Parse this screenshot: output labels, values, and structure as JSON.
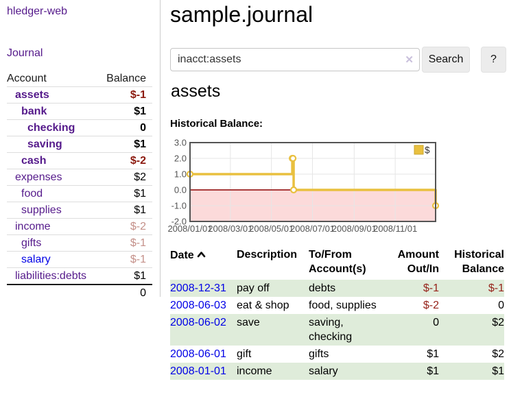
{
  "sidebar": {
    "app_title": "hledger-web",
    "journal_label": "Journal",
    "accounts_table": {
      "account_header": "Account",
      "balance_header": "Balance",
      "rows": [
        {
          "name": "assets",
          "depth": 1,
          "bold": true,
          "balance": "$-1",
          "balance_style": "negative"
        },
        {
          "name": "bank",
          "depth": 2,
          "bold": true,
          "balance": "$1",
          "balance_style": "normal"
        },
        {
          "name": "checking",
          "depth": 3,
          "bold": true,
          "balance": "0",
          "balance_style": "normal"
        },
        {
          "name": "saving",
          "depth": 3,
          "bold": true,
          "balance": "$1",
          "balance_style": "normal"
        },
        {
          "name": "cash",
          "depth": 2,
          "bold": true,
          "balance": "$-2",
          "balance_style": "negative"
        },
        {
          "name": "expenses",
          "depth": 1,
          "bold": false,
          "balance": "$2",
          "balance_style": "normal"
        },
        {
          "name": "food",
          "depth": 2,
          "bold": false,
          "balance": "$1",
          "balance_style": "normal"
        },
        {
          "name": "supplies",
          "depth": 2,
          "bold": false,
          "balance": "$1",
          "balance_style": "normal"
        },
        {
          "name": "income",
          "depth": 1,
          "bold": false,
          "balance": "$-2",
          "balance_style": "negative-dim"
        },
        {
          "name": "gifts",
          "depth": 2,
          "bold": false,
          "balance": "$-1",
          "balance_style": "negative-dim"
        },
        {
          "name": "salary",
          "depth": 2,
          "bold": false,
          "link_color": "blue",
          "balance": "$-1",
          "balance_style": "negative-dim"
        },
        {
          "name": "liabilities:debts",
          "depth": 1,
          "bold": false,
          "balance": "$1",
          "balance_style": "normal"
        }
      ],
      "total": "0"
    }
  },
  "main": {
    "title": "sample.journal",
    "search": {
      "value": "inacct:assets",
      "clear_icon": "✕",
      "search_button": "Search",
      "help_button": "?"
    },
    "account_heading": "assets",
    "chart_title": "Historical Balance:",
    "register_table": {
      "headers": {
        "date": "Date",
        "description": "Description",
        "tofrom": "To/From Account(s)",
        "amount": "Amount Out/In",
        "historical": "Historical Balance"
      },
      "rows": [
        {
          "date": "2008-12-31",
          "description": "pay off",
          "accounts": "debts",
          "amount": "$-1",
          "amount_neg": true,
          "balance": "$-1",
          "balance_neg": true,
          "green": true
        },
        {
          "date": "2008-06-03",
          "description": "eat & shop",
          "accounts": "food, supplies",
          "amount": "$-2",
          "amount_neg": true,
          "balance": "0",
          "balance_neg": false,
          "green": false
        },
        {
          "date": "2008-06-02",
          "description": "save",
          "accounts": "saving, checking",
          "amount": "0",
          "amount_neg": false,
          "balance": "$2",
          "balance_neg": false,
          "green": true
        },
        {
          "date": "2008-06-01",
          "description": "gift",
          "accounts": "gifts",
          "amount": "$1",
          "amount_neg": false,
          "balance": "$2",
          "balance_neg": false,
          "green": false
        },
        {
          "date": "2008-01-01",
          "description": "income",
          "accounts": "salary",
          "amount": "$1",
          "amount_neg": false,
          "balance": "$1",
          "balance_neg": false,
          "green": true
        }
      ]
    }
  },
  "chart_data": {
    "type": "line",
    "style": "step",
    "title": "Historical Balance:",
    "series": [
      {
        "name": "$",
        "color": "#e9c03f",
        "points": [
          [
            "2008-01-01",
            1
          ],
          [
            "2008-06-01",
            2
          ],
          [
            "2008-06-02",
            2
          ],
          [
            "2008-06-03",
            0
          ],
          [
            "2008-12-31",
            -1
          ]
        ]
      }
    ],
    "x_range": [
      "2008-01-01",
      "2008-12-31"
    ],
    "ylim": [
      -2,
      3
    ],
    "y_ticks": [
      {
        "label": "3.0",
        "value": 3
      },
      {
        "label": "2.0",
        "value": 2
      },
      {
        "label": "1.0",
        "value": 1
      },
      {
        "label": "0.0",
        "value": 0
      },
      {
        "label": "-1.0",
        "value": -1
      },
      {
        "label": "-2.0",
        "value": -2
      }
    ],
    "x_ticks": [
      {
        "label": "2008/01/01",
        "date": "2008-01-01"
      },
      {
        "label": "2008/03/01",
        "date": "2008-03-01"
      },
      {
        "label": "2008/05/01",
        "date": "2008-05-01"
      },
      {
        "label": "2008/07/01",
        "date": "2008-07-01"
      },
      {
        "label": "2008/09/01",
        "date": "2008-09-01"
      },
      {
        "label": "2008/11/01",
        "date": "2008-11-01"
      }
    ],
    "legend": {
      "label": "$",
      "position": "top-right"
    },
    "grid": true,
    "negative_fill": "#fcdada",
    "zero_line_color": "#8b0000",
    "border_color": "#545454",
    "tick_label_color": "#545454"
  }
}
